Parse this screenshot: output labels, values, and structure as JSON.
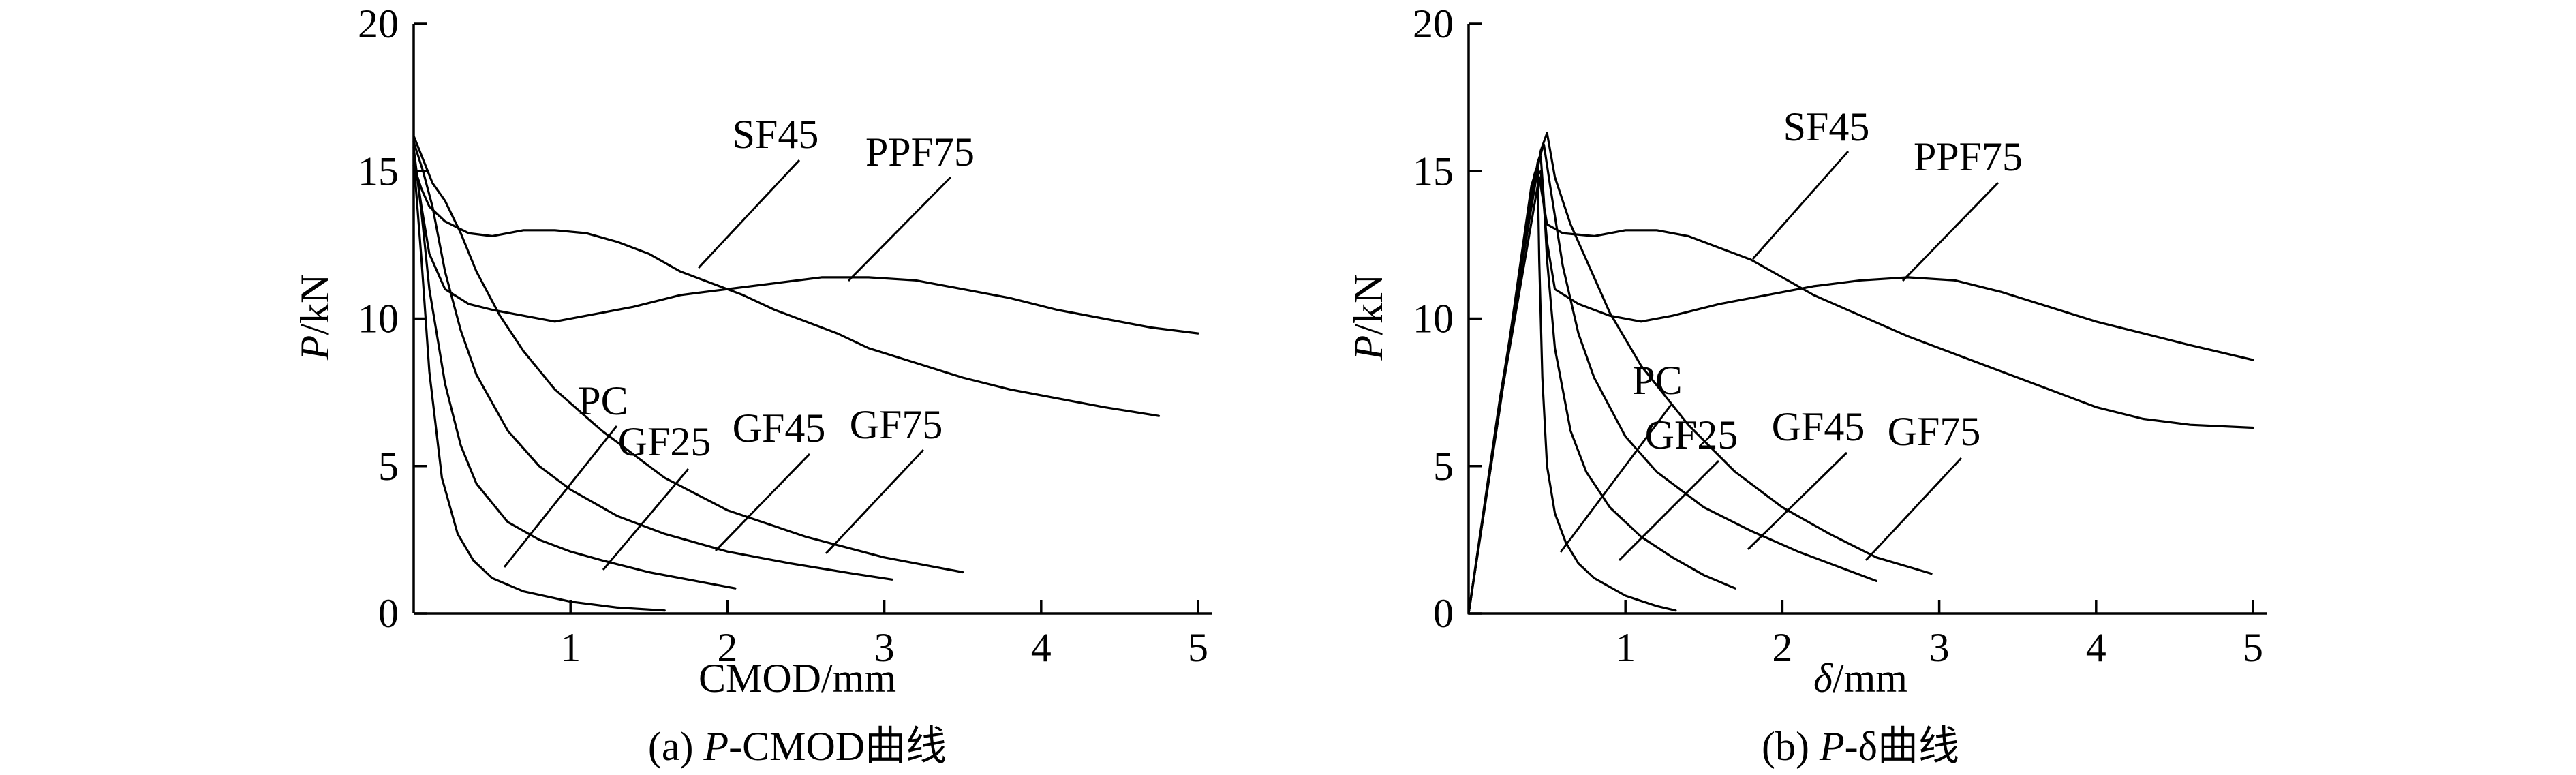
{
  "figure": {
    "panels": [
      {
        "id": "a",
        "caption_prefix": "(a) ",
        "caption_var": "P",
        "caption_suffix": "-CMOD曲线",
        "xlabel_var": "",
        "xlabel_unit": "CMOD/mm",
        "ylabel_var": "P",
        "ylabel_unit": "/kN"
      },
      {
        "id": "b",
        "caption_prefix": "(b) ",
        "caption_var": "P",
        "caption_suffix": "-δ曲线",
        "xlabel_var": "δ",
        "xlabel_unit": "/mm",
        "ylabel_var": "P",
        "ylabel_unit": "/kN"
      }
    ]
  },
  "chart_data": [
    {
      "type": "line",
      "title": "",
      "caption": "(a) P-CMOD曲线",
      "xlabel": "CMOD/mm",
      "ylabel": "P/kN",
      "xlim": [
        0,
        5
      ],
      "ylim": [
        0,
        20
      ],
      "xticks": [
        1,
        2,
        3,
        4,
        5
      ],
      "yticks": [
        0,
        5,
        10,
        15,
        20
      ],
      "grid": false,
      "series": [
        {
          "name": "PC",
          "x": [
            0.0,
            0.05,
            0.1,
            0.18,
            0.28,
            0.38,
            0.5,
            0.7,
            1.0,
            1.3,
            1.6
          ],
          "y": [
            15.4,
            12.0,
            8.2,
            4.6,
            2.7,
            1.8,
            1.2,
            0.75,
            0.4,
            0.2,
            0.1
          ]
        },
        {
          "name": "GF25",
          "x": [
            0.0,
            0.05,
            0.1,
            0.2,
            0.3,
            0.4,
            0.6,
            0.8,
            1.0,
            1.2,
            1.5,
            1.8,
            2.05
          ],
          "y": [
            15.8,
            13.6,
            11.0,
            7.8,
            5.7,
            4.4,
            3.1,
            2.5,
            2.1,
            1.8,
            1.4,
            1.1,
            0.85
          ]
        },
        {
          "name": "GF45",
          "x": [
            0.0,
            0.06,
            0.12,
            0.2,
            0.3,
            0.4,
            0.6,
            0.8,
            1.0,
            1.3,
            1.6,
            2.0,
            2.4,
            2.8,
            3.05
          ],
          "y": [
            16.0,
            15.0,
            13.8,
            11.6,
            9.6,
            8.1,
            6.2,
            5.0,
            4.2,
            3.3,
            2.7,
            2.1,
            1.7,
            1.35,
            1.15
          ]
        },
        {
          "name": "GF75",
          "x": [
            0.0,
            0.06,
            0.12,
            0.2,
            0.3,
            0.4,
            0.55,
            0.7,
            0.9,
            1.2,
            1.6,
            2.0,
            2.5,
            3.0,
            3.5
          ],
          "y": [
            16.2,
            15.4,
            14.6,
            14.0,
            12.9,
            11.6,
            10.1,
            8.9,
            7.6,
            6.2,
            4.6,
            3.5,
            2.6,
            1.9,
            1.4
          ]
        },
        {
          "name": "SF45",
          "x": [
            0.0,
            0.05,
            0.1,
            0.2,
            0.35,
            0.5,
            0.7,
            0.9,
            1.1,
            1.3,
            1.5,
            1.7,
            1.9,
            2.1,
            2.3,
            2.5,
            2.7,
            2.9,
            3.2,
            3.5,
            3.8,
            4.1,
            4.4,
            4.75
          ],
          "y": [
            15.2,
            14.4,
            13.8,
            13.3,
            12.9,
            12.8,
            13.0,
            13.0,
            12.9,
            12.6,
            12.2,
            11.6,
            11.2,
            10.8,
            10.3,
            9.9,
            9.5,
            9.0,
            8.5,
            8.0,
            7.6,
            7.3,
            7.0,
            6.7
          ]
        },
        {
          "name": "PPF75",
          "x": [
            0.0,
            0.05,
            0.1,
            0.2,
            0.35,
            0.5,
            0.7,
            0.9,
            1.1,
            1.4,
            1.7,
            2.0,
            2.3,
            2.6,
            2.9,
            3.2,
            3.5,
            3.8,
            4.1,
            4.4,
            4.7,
            5.0
          ],
          "y": [
            15.6,
            13.8,
            12.2,
            11.0,
            10.5,
            10.3,
            10.1,
            9.9,
            10.1,
            10.4,
            10.8,
            11.0,
            11.2,
            11.4,
            11.4,
            11.3,
            11.0,
            10.7,
            10.3,
            10.0,
            9.7,
            9.5
          ]
        }
      ]
    },
    {
      "type": "line",
      "title": "",
      "caption": "(b) P-δ曲线",
      "xlabel": "δ/mm",
      "ylabel": "P/kN",
      "xlim": [
        0,
        5
      ],
      "ylim": [
        0,
        20
      ],
      "xticks": [
        1,
        2,
        3,
        4,
        5
      ],
      "yticks": [
        0,
        5,
        10,
        15,
        20
      ],
      "grid": false,
      "series": [
        {
          "name": "PC",
          "x": [
            0.0,
            0.2,
            0.4,
            0.44,
            0.45,
            0.47,
            0.5,
            0.55,
            0.62,
            0.7,
            0.8,
            1.0,
            1.2,
            1.32
          ],
          "y": [
            0.0,
            7.0,
            14.5,
            15.2,
            12.0,
            8.0,
            5.0,
            3.4,
            2.4,
            1.7,
            1.2,
            0.6,
            0.25,
            0.1
          ]
        },
        {
          "name": "GF25",
          "x": [
            0.0,
            0.2,
            0.42,
            0.46,
            0.48,
            0.5,
            0.55,
            0.65,
            0.75,
            0.9,
            1.1,
            1.3,
            1.5,
            1.7
          ],
          "y": [
            0.0,
            7.1,
            14.9,
            15.5,
            14.0,
            12.0,
            9.0,
            6.2,
            4.8,
            3.6,
            2.6,
            1.9,
            1.3,
            0.85
          ]
        },
        {
          "name": "GF45",
          "x": [
            0.0,
            0.2,
            0.44,
            0.48,
            0.52,
            0.6,
            0.7,
            0.8,
            1.0,
            1.2,
            1.5,
            1.8,
            2.1,
            2.4,
            2.6
          ],
          "y": [
            0.0,
            7.2,
            15.3,
            15.9,
            14.5,
            11.8,
            9.5,
            8.0,
            6.0,
            4.8,
            3.6,
            2.8,
            2.1,
            1.5,
            1.1
          ]
        },
        {
          "name": "GF75",
          "x": [
            0.0,
            0.2,
            0.46,
            0.5,
            0.55,
            0.65,
            0.75,
            0.9,
            1.1,
            1.4,
            1.7,
            2.0,
            2.3,
            2.6,
            2.95
          ],
          "y": [
            0.0,
            7.3,
            15.7,
            16.3,
            14.8,
            13.2,
            12.0,
            10.2,
            8.4,
            6.4,
            4.8,
            3.6,
            2.7,
            1.9,
            1.35
          ]
        },
        {
          "name": "SF45",
          "x": [
            0.0,
            0.2,
            0.45,
            0.5,
            0.6,
            0.8,
            1.0,
            1.2,
            1.4,
            1.6,
            1.8,
            2.0,
            2.2,
            2.5,
            2.8,
            3.1,
            3.4,
            3.7,
            4.0,
            4.3,
            4.6,
            5.0
          ],
          "y": [
            0.0,
            7.1,
            14.8,
            13.2,
            12.9,
            12.8,
            13.0,
            13.0,
            12.8,
            12.4,
            12.0,
            11.4,
            10.8,
            10.1,
            9.4,
            8.8,
            8.2,
            7.6,
            7.0,
            6.6,
            6.4,
            6.3
          ]
        },
        {
          "name": "PPF75",
          "x": [
            0.0,
            0.2,
            0.42,
            0.46,
            0.5,
            0.55,
            0.7,
            0.9,
            1.1,
            1.3,
            1.6,
            1.9,
            2.2,
            2.5,
            2.8,
            3.1,
            3.4,
            3.7,
            4.0,
            4.3,
            4.6,
            5.0
          ],
          "y": [
            0.0,
            7.0,
            14.8,
            15.0,
            12.6,
            11.0,
            10.5,
            10.1,
            9.9,
            10.1,
            10.5,
            10.8,
            11.1,
            11.3,
            11.4,
            11.3,
            10.9,
            10.4,
            9.9,
            9.5,
            9.1,
            8.6
          ]
        }
      ]
    }
  ]
}
